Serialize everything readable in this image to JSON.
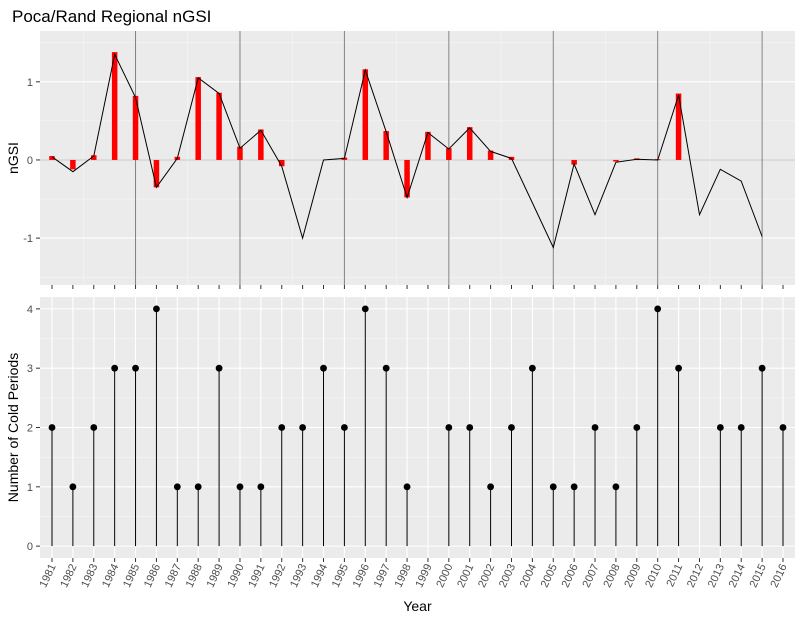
{
  "chart_data": [
    {
      "type": "bar",
      "title": "Poca/Rand Regional nGSI",
      "ylabel": "nGSI",
      "xlabel": "",
      "ylim": [
        -1.6,
        1.65
      ],
      "yticks": [
        "-1",
        "0",
        "1"
      ],
      "grid": true,
      "colors": {
        "bars": "#ff0000",
        "line": "#000000",
        "vlines": "#7f7f7f",
        "panel": "#ebebeb",
        "zero_line": "#c8c8c8"
      },
      "x": [
        1981,
        1982,
        1983,
        1984,
        1985,
        1986,
        1987,
        1988,
        1989,
        1990,
        1991,
        1992,
        1993,
        1994,
        1995,
        1996,
        1997,
        1998,
        1999,
        2000,
        2001,
        2002,
        2003,
        2004,
        2005,
        2006,
        2007,
        2008,
        2009,
        2010,
        2011,
        2012,
        2013,
        2014,
        2015
      ],
      "line_values": [
        0.04,
        -0.15,
        0.05,
        1.35,
        0.8,
        -0.35,
        0.02,
        1.05,
        0.85,
        0.15,
        0.38,
        -0.08,
        -1.0,
        0.0,
        0.02,
        1.15,
        0.36,
        -0.48,
        0.35,
        0.14,
        0.41,
        0.11,
        0.02,
        -0.55,
        -1.12,
        -0.05,
        -0.7,
        -0.03,
        0.01,
        0.0,
        0.83,
        -0.7,
        -0.12,
        -0.27,
        -0.98
      ],
      "bars": [
        {
          "x": 1981,
          "value": 0.05
        },
        {
          "x": 1982,
          "value": -0.12
        },
        {
          "x": 1983,
          "value": 0.06
        },
        {
          "x": 1984,
          "value": 1.38
        },
        {
          "x": 1985,
          "value": 0.82
        },
        {
          "x": 1986,
          "value": -0.35
        },
        {
          "x": 1987,
          "value": 0.04
        },
        {
          "x": 1988,
          "value": 1.06
        },
        {
          "x": 1989,
          "value": 0.86
        },
        {
          "x": 1990,
          "value": 0.17
        },
        {
          "x": 1991,
          "value": 0.39
        },
        {
          "x": 1992,
          "value": -0.08
        },
        {
          "x": 1995,
          "value": 0.03
        },
        {
          "x": 1996,
          "value": 1.16
        },
        {
          "x": 1997,
          "value": 0.37
        },
        {
          "x": 1998,
          "value": -0.48
        },
        {
          "x": 1999,
          "value": 0.36
        },
        {
          "x": 2000,
          "value": 0.15
        },
        {
          "x": 2001,
          "value": 0.42
        },
        {
          "x": 2002,
          "value": 0.12
        },
        {
          "x": 2003,
          "value": 0.04
        },
        {
          "x": 2006,
          "value": -0.06
        },
        {
          "x": 2008,
          "value": -0.02
        },
        {
          "x": 2009,
          "value": 0.02
        },
        {
          "x": 2010,
          "value": 0.01
        },
        {
          "x": 2011,
          "value": 0.85
        }
      ],
      "vlines": [
        1985,
        1990,
        1995,
        2000,
        2005,
        2010,
        2015
      ]
    },
    {
      "type": "scatter",
      "title": "",
      "xlabel": "Year",
      "ylabel": "Number of Cold Periods",
      "ylim": [
        -0.2,
        4.2
      ],
      "yticks": [
        "0",
        "1",
        "2",
        "3",
        "4"
      ],
      "grid": true,
      "colors": {
        "points": "#000000",
        "stems": "#000000",
        "panel": "#ebebeb"
      },
      "x_tick_labels": [
        "1981",
        "1982",
        "1983",
        "1984",
        "1985",
        "1986",
        "1987",
        "1988",
        "1989",
        "1990",
        "1991",
        "1992",
        "1993",
        "1994",
        "1995",
        "1996",
        "1997",
        "1998",
        "1999",
        "2000",
        "2001",
        "2002",
        "2003",
        "2004",
        "2005",
        "2006",
        "2007",
        "2008",
        "2009",
        "2010",
        "2011",
        "2012",
        "2013",
        "2014",
        "2015",
        "2016"
      ],
      "points": [
        {
          "x": 1981,
          "y": 2
        },
        {
          "x": 1982,
          "y": 1
        },
        {
          "x": 1983,
          "y": 2
        },
        {
          "x": 1984,
          "y": 3
        },
        {
          "x": 1985,
          "y": 3
        },
        {
          "x": 1986,
          "y": 4
        },
        {
          "x": 1987,
          "y": 1
        },
        {
          "x": 1988,
          "y": 1
        },
        {
          "x": 1989,
          "y": 3
        },
        {
          "x": 1990,
          "y": 1
        },
        {
          "x": 1991,
          "y": 1
        },
        {
          "x": 1992,
          "y": 2
        },
        {
          "x": 1993,
          "y": 2
        },
        {
          "x": 1994,
          "y": 3
        },
        {
          "x": 1995,
          "y": 2
        },
        {
          "x": 1996,
          "y": 4
        },
        {
          "x": 1997,
          "y": 3
        },
        {
          "x": 1998,
          "y": 1
        },
        {
          "x": 2000,
          "y": 2
        },
        {
          "x": 2001,
          "y": 2
        },
        {
          "x": 2002,
          "y": 1
        },
        {
          "x": 2003,
          "y": 2
        },
        {
          "x": 2004,
          "y": 3
        },
        {
          "x": 2005,
          "y": 1
        },
        {
          "x": 2006,
          "y": 1
        },
        {
          "x": 2007,
          "y": 2
        },
        {
          "x": 2008,
          "y": 1
        },
        {
          "x": 2009,
          "y": 2
        },
        {
          "x": 2010,
          "y": 4
        },
        {
          "x": 2011,
          "y": 3
        },
        {
          "x": 2013,
          "y": 2
        },
        {
          "x": 2014,
          "y": 2
        },
        {
          "x": 2015,
          "y": 3
        },
        {
          "x": 2016,
          "y": 2
        }
      ]
    }
  ]
}
